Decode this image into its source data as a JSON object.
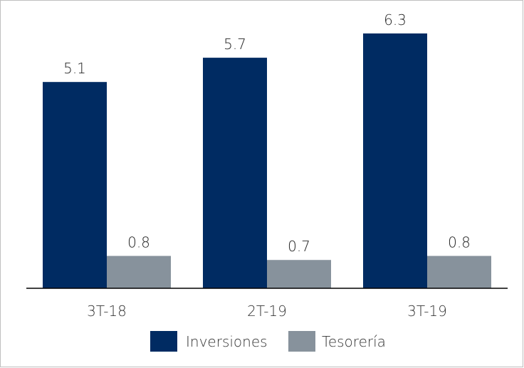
{
  "chart_data": {
    "type": "bar",
    "categories": [
      "3T-18",
      "2T-19",
      "3T-19"
    ],
    "series": [
      {
        "name": "Inversiones",
        "values": [
          5.1,
          5.7,
          6.3
        ],
        "value_labels": [
          "5.1",
          "5.7",
          "6.3"
        ],
        "color": "#002b62"
      },
      {
        "name": "Tesorería",
        "values": [
          0.8,
          0.7,
          0.8
        ],
        "value_labels": [
          "0.8",
          "0.7",
          "0.8"
        ],
        "color": "#87929c"
      }
    ],
    "ylim": [
      0,
      6.3
    ],
    "grid": false,
    "y_axis_visible": false,
    "legend_position": "bottom-center",
    "border_color": "#bfbfbf",
    "axis_color": "#000000",
    "text_color": "#222222"
  }
}
